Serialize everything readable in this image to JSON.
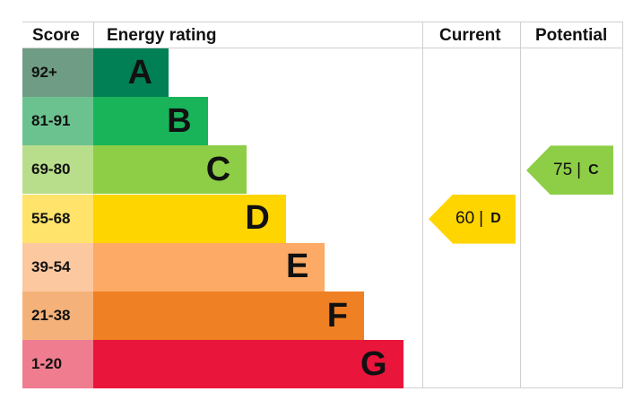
{
  "headers": {
    "score": "Score",
    "rating": "Energy rating",
    "current": "Current",
    "potential": "Potential"
  },
  "chart_data": {
    "type": "bar",
    "title": "",
    "categories": [
      "A",
      "B",
      "C",
      "D",
      "E",
      "F",
      "G"
    ],
    "score_bands": [
      "92+",
      "81-91",
      "69-80",
      "55-68",
      "39-54",
      "21-38",
      "1-20"
    ],
    "band_colors": [
      "#008054",
      "#19b459",
      "#8dce46",
      "#ffd500",
      "#fcaa65",
      "#ef8023",
      "#e9153b"
    ],
    "score_colors": [
      "#6f9c84",
      "#6cc28f",
      "#b8de8c",
      "#ffe36b",
      "#fcc8a0",
      "#f4b27a",
      "#ef7c8f"
    ],
    "current": {
      "value": 60,
      "separator": "|",
      "letter": "D",
      "color": "#ffd500"
    },
    "potential": {
      "value": 75,
      "separator": "|",
      "letter": "C",
      "color": "#8dce46"
    }
  }
}
